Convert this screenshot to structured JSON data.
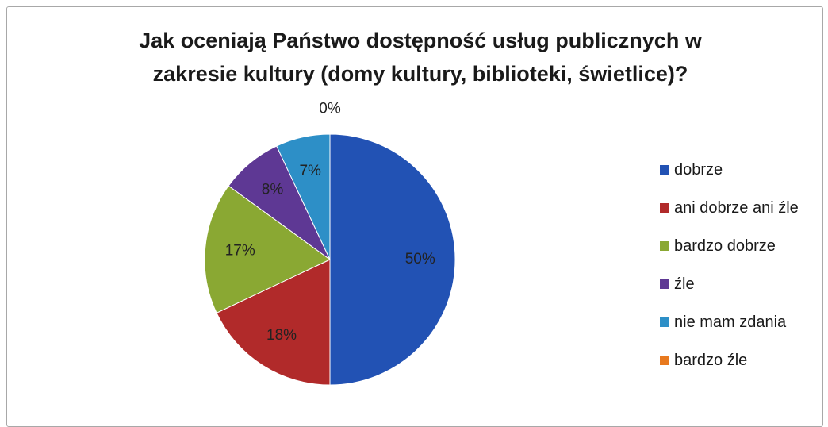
{
  "chart_data": {
    "type": "pie",
    "title_lines": [
      "Jak oceniają Państwo dostępność usług publicznych w",
      "zakresie kultury (domy kultury, biblioteki, świetlice)?"
    ],
    "categories": [
      "dobrze",
      "ani dobrze ani źle",
      "bardzo dobrze",
      "źle",
      "nie mam zdania",
      "bardzo źle"
    ],
    "values": [
      50,
      18,
      17,
      8,
      7,
      0
    ],
    "labels": [
      "50%",
      "18%",
      "17%",
      "8%",
      "7%",
      "0%"
    ],
    "colors": [
      "#2252b4",
      "#b12a2a",
      "#8aa833",
      "#5e3894",
      "#2d8fc7",
      "#e8791e"
    ],
    "legend_position": "right"
  }
}
